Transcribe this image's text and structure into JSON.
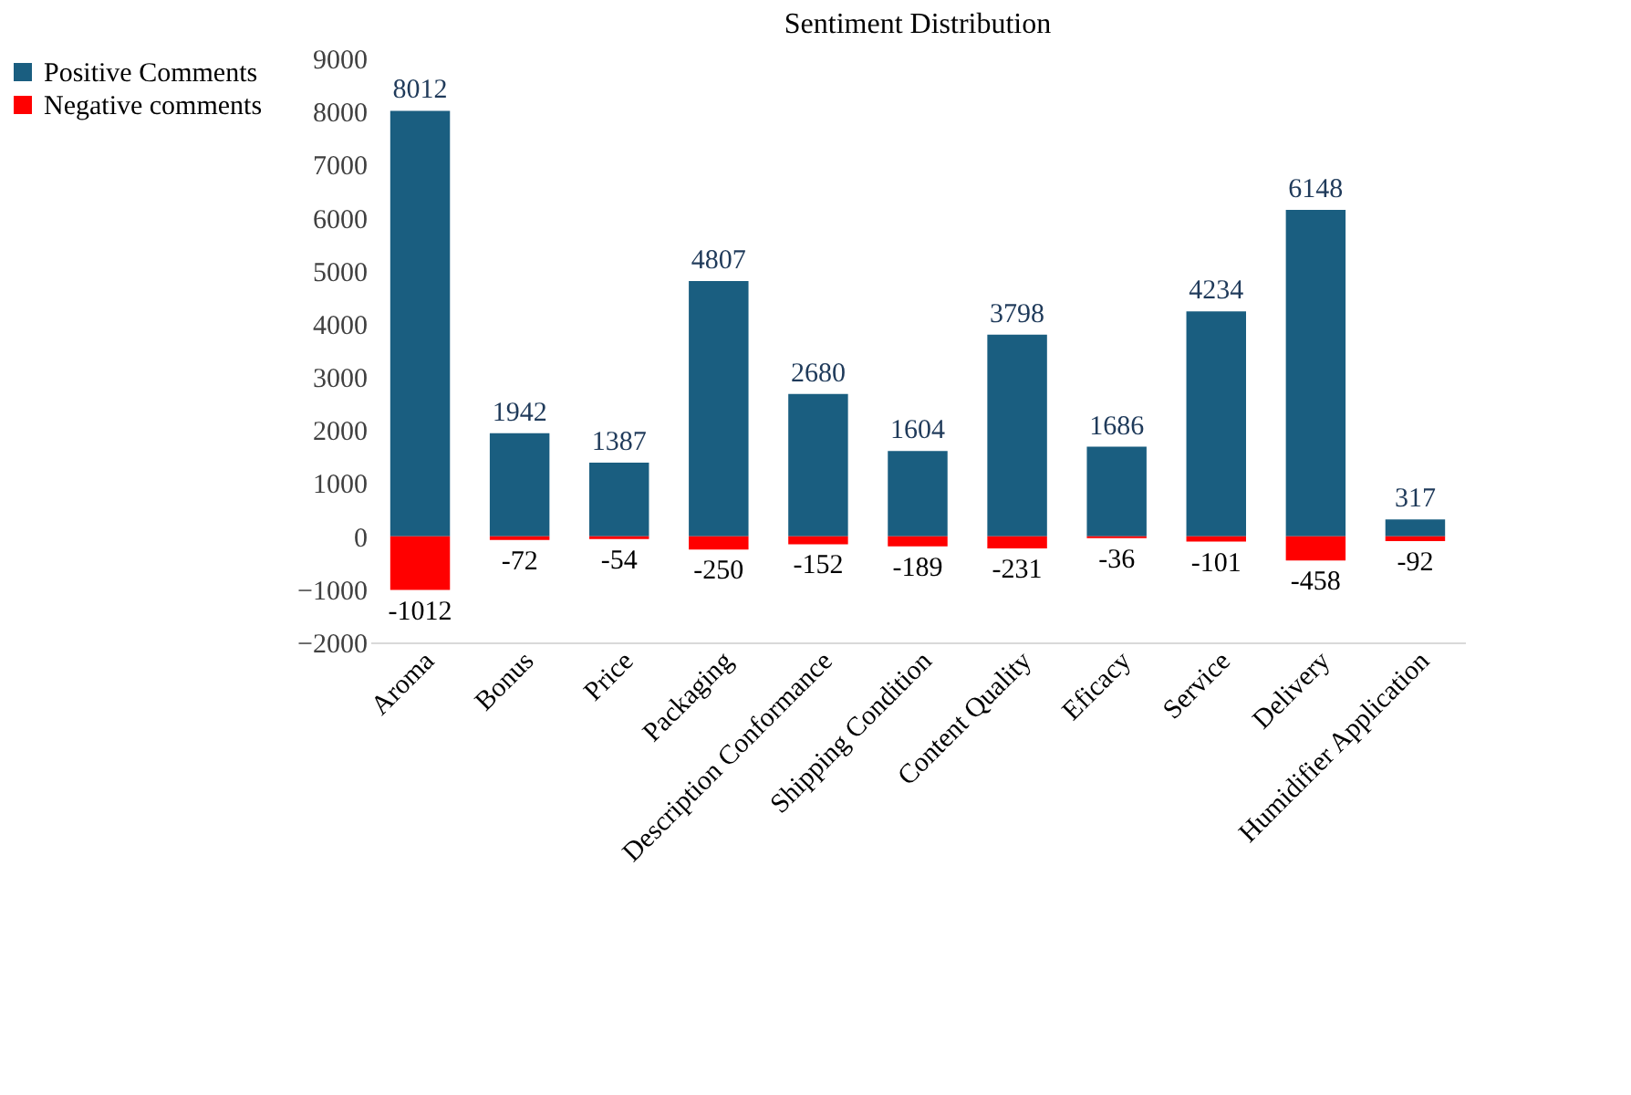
{
  "chart_data": {
    "type": "bar",
    "title": "Sentiment Distribution",
    "stacked": true,
    "data_labels": true,
    "legend": "left",
    "grid": false,
    "categories": [
      "Aroma",
      "Bonus",
      "Price",
      "Packaging",
      "Description Conformance",
      "Shipping Condition",
      "Content Quality",
      "Eficacy",
      "Service",
      "Delivery",
      "Humidifier Application"
    ],
    "series": [
      {
        "name": "Positive Comments",
        "color": "#1a5e80",
        "values": [
          8012,
          1942,
          1387,
          4807,
          2680,
          1604,
          3798,
          1686,
          4234,
          6148,
          317
        ]
      },
      {
        "name": "Negative comments",
        "color": "#ff0000",
        "values": [
          -1012,
          -72,
          -54,
          -250,
          -152,
          -189,
          -231,
          -36,
          -101,
          -458,
          -92
        ]
      }
    ],
    "ylim": [
      -2000,
      9000
    ],
    "yticks": [
      -2000,
      -1000,
      0,
      1000,
      2000,
      3000,
      4000,
      5000,
      6000,
      7000,
      8000,
      9000
    ]
  }
}
